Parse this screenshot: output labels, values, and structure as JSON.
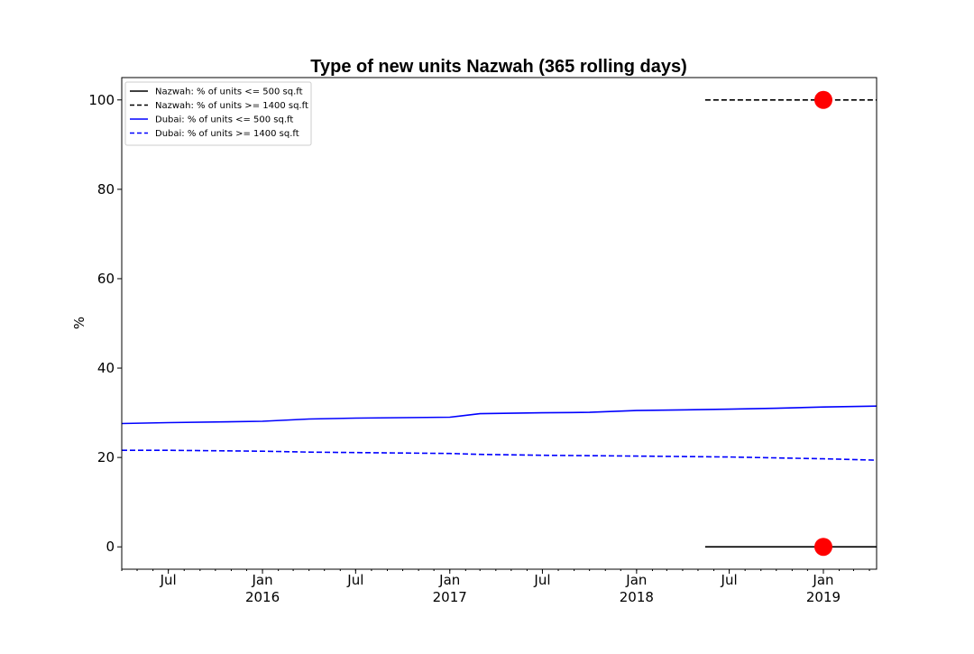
{
  "chart_data": {
    "type": "line",
    "title": "Type of new units Nazwah (365 rolling days)",
    "xlabel": "",
    "ylabel": "%",
    "xlim": [
      "2015-04-01",
      "2019-04-15"
    ],
    "ylim": [
      -5,
      105
    ],
    "yticks": [
      0,
      20,
      40,
      60,
      80,
      100
    ],
    "xticks": [
      {
        "date": "2015-07-01",
        "label": "Jul",
        "year": ""
      },
      {
        "date": "2016-01-01",
        "label": "Jan",
        "year": "2016"
      },
      {
        "date": "2016-07-01",
        "label": "Jul",
        "year": ""
      },
      {
        "date": "2017-01-01",
        "label": "Jan",
        "year": "2017"
      },
      {
        "date": "2017-07-01",
        "label": "Jul",
        "year": ""
      },
      {
        "date": "2018-01-01",
        "label": "Jan",
        "year": "2018"
      },
      {
        "date": "2018-07-01",
        "label": "Jul",
        "year": ""
      },
      {
        "date": "2019-01-01",
        "label": "Jan",
        "year": "2019"
      }
    ],
    "grid": false,
    "legend_position": "top-left",
    "series": [
      {
        "name": "Nazwah: % of units <= 500 sq.ft",
        "color": "#000000",
        "dash": "solid",
        "x": [
          "2018-05-15",
          "2019-04-15"
        ],
        "y": [
          0,
          0
        ]
      },
      {
        "name": "Nazwah: % of units >= 1400 sq.ft",
        "color": "#000000",
        "dash": "dashed",
        "x": [
          "2018-05-15",
          "2019-04-15"
        ],
        "y": [
          100,
          100
        ]
      },
      {
        "name": "Dubai: % of units <= 500 sq.ft",
        "color": "#0000ff",
        "dash": "solid",
        "x": [
          "2015-04-01",
          "2015-07-01",
          "2016-01-01",
          "2016-04-01",
          "2016-07-01",
          "2017-01-01",
          "2017-03-01",
          "2017-07-01",
          "2017-10-01",
          "2018-01-01",
          "2018-07-01",
          "2018-10-01",
          "2019-01-01",
          "2019-04-15"
        ],
        "y": [
          27.6,
          27.8,
          28.1,
          28.6,
          28.8,
          29.0,
          29.8,
          30.0,
          30.1,
          30.5,
          30.8,
          31.0,
          31.3,
          31.5
        ]
      },
      {
        "name": "Dubai: % of units >= 1400 sq.ft",
        "color": "#0000ff",
        "dash": "dashed",
        "x": [
          "2015-04-01",
          "2015-07-01",
          "2016-01-01",
          "2016-04-01",
          "2016-07-01",
          "2017-01-01",
          "2017-03-01",
          "2017-07-01",
          "2018-01-01",
          "2018-07-01",
          "2018-10-01",
          "2019-01-01",
          "2019-04-15"
        ],
        "y": [
          21.6,
          21.6,
          21.4,
          21.2,
          21.1,
          20.9,
          20.7,
          20.5,
          20.3,
          20.1,
          19.9,
          19.7,
          19.4
        ]
      }
    ],
    "markers": [
      {
        "x": "2019-01-01",
        "y": 100,
        "color": "#ff0000"
      },
      {
        "x": "2019-01-01",
        "y": 0,
        "color": "#ff0000"
      }
    ]
  }
}
